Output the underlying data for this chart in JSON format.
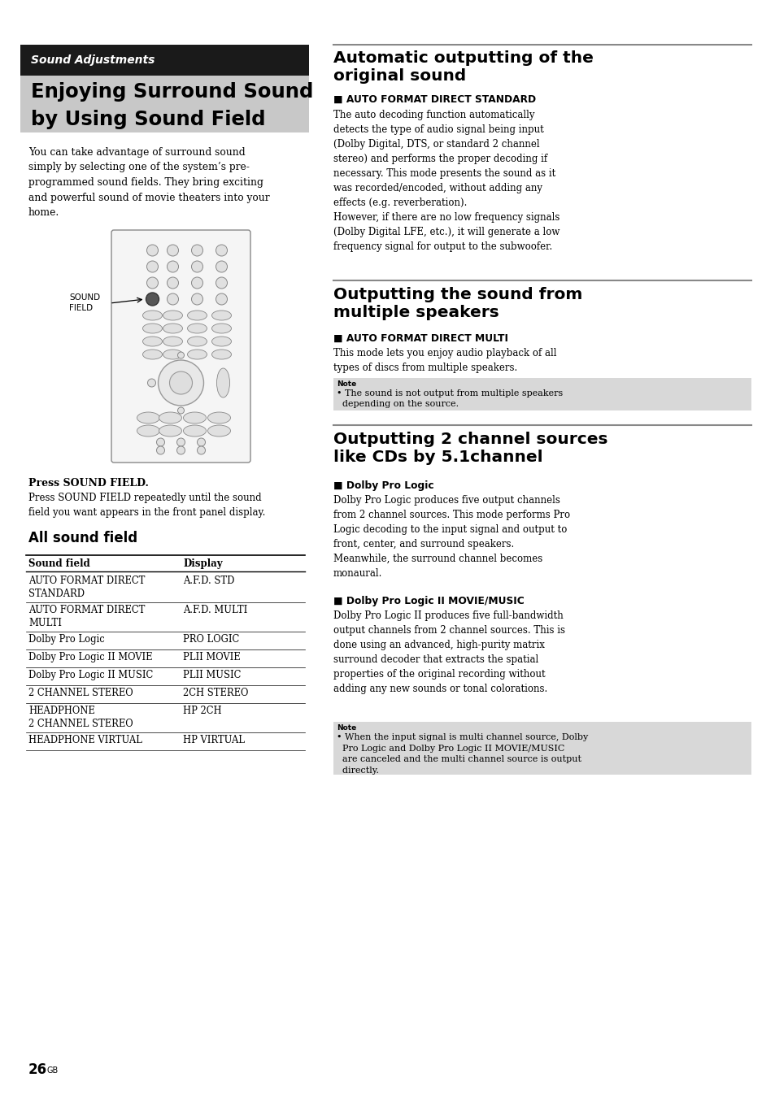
{
  "page_bg": "#ffffff",
  "header_bg": "#1a1a1a",
  "header_text": "Sound Adjustments",
  "title_bg": "#c8c8c8",
  "title_line1": "Enjoying Surround Sound",
  "title_line2": "by Using Sound Field",
  "intro_text": "You can take advantage of surround sound\nsimply by selecting one of the system’s pre-\nprogrammed sound fields. They bring exciting\nand powerful sound of movie theaters into your\nhome.",
  "press_bold": "Press SOUND FIELD.",
  "press_body": "Press SOUND FIELD repeatedly until the sound\nfield you want appears in the front panel display.",
  "all_sound_field_title": "All sound field",
  "table_headers": [
    "Sound field",
    "Display"
  ],
  "table_rows": [
    [
      "AUTO FORMAT DIRECT\nSTANDARD",
      "A.F.D. STD"
    ],
    [
      "AUTO FORMAT DIRECT\nMULTI",
      "A.F.D. MULTI"
    ],
    [
      "Dolby Pro Logic",
      "PRO LOGIC"
    ],
    [
      "Dolby Pro Logic II MOVIE",
      "PLII MOVIE"
    ],
    [
      "Dolby Pro Logic II MUSIC",
      "PLII MUSIC"
    ],
    [
      "2 CHANNEL STEREO",
      "2CH STEREO"
    ],
    [
      "HEADPHONE\n2 CHANNEL STEREO",
      "HP 2CH"
    ],
    [
      "HEADPHONE VIRTUAL",
      "HP VIRTUAL"
    ]
  ],
  "right_sec1_title": "Automatic outputting of the\noriginal sound",
  "right_sec1_sub": "■ AUTO FORMAT DIRECT STANDARD",
  "right_sec1_body": "The auto decoding function automatically\ndetects the type of audio signal being input\n(Dolby Digital, DTS, or standard 2 channel\nstereo) and performs the proper decoding if\nnecessary. This mode presents the sound as it\nwas recorded/encoded, without adding any\neffects (e.g. reverberation).\nHowever, if there are no low frequency signals\n(Dolby Digital LFE, etc.), it will generate a low\nfrequency signal for output to the subwoofer.",
  "right_sec2_title": "Outputting the sound from\nmultiple speakers",
  "right_sec2_sub": "■ AUTO FORMAT DIRECT MULTI",
  "right_sec2_body": "This mode lets you enjoy audio playback of all\ntypes of discs from multiple speakers.",
  "right_sec2_note": "• The sound is not output from multiple speakers\n  depending on the source.",
  "right_sec3_title": "Outputting 2 channel sources\nlike CDs by 5.1channel",
  "right_sec3_sub1": "■ Dolby Pro Logic",
  "right_sec3_body1": "Dolby Pro Logic produces five output channels\nfrom 2 channel sources. This mode performs Pro\nLogic decoding to the input signal and output to\nfront, center, and surround speakers.\nMeanwhile, the surround channel becomes\nmonaural.",
  "right_sec3_sub2": "■ Dolby Pro Logic II MOVIE/MUSIC",
  "right_sec3_body2": "Dolby Pro Logic II produces five full-bandwidth\noutput channels from 2 channel sources. This is\ndone using an advanced, high-purity matrix\nsurround decoder that extracts the spatial\nproperties of the original recording without\nadding any new sounds or tonal colorations.",
  "right_sec3_note": "• When the input signal is multi channel source, Dolby\n  Pro Logic and Dolby Pro Logic II MOVIE/MUSIC\n  are canceled and the multi channel source is output\n  directly.",
  "page_num_big": "26",
  "page_num_small": "GB"
}
